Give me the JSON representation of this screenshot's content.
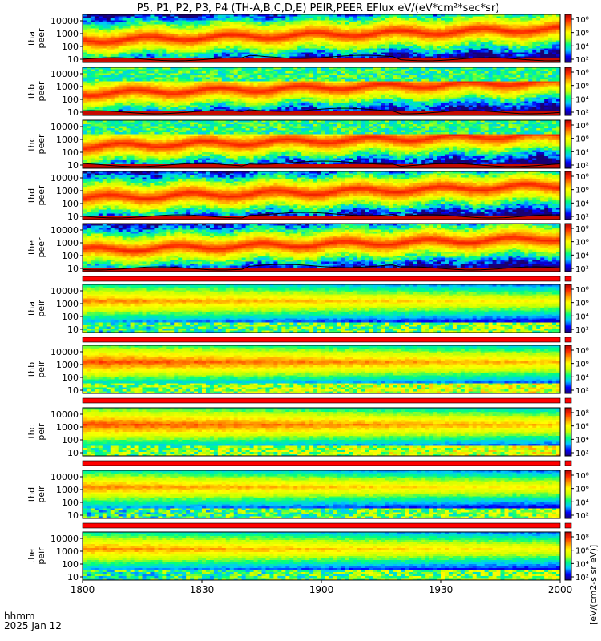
{
  "title": "P5, P1, P2, P3, P4 (TH-A,B,C,D,E) PEIR,PEER EFlux eV/(eV*cm²*sec*sr)",
  "footer": {
    "line1": "hhmm",
    "line2": "2025 Jan 12"
  },
  "colorbar_label": "[eV/(cm2-s sr eV)]",
  "chart_data": {
    "type": "heatmap",
    "x": {
      "ticks": [
        "1800",
        "1830",
        "1900",
        "1930",
        "2000"
      ],
      "range": [
        "18:00",
        "20:00"
      ]
    },
    "y_scale": "log",
    "y_ticks": [
      "10000",
      "1000",
      "100",
      "10"
    ],
    "colorbar_ticks": [
      "10⁸",
      "10⁶",
      "10⁴",
      "10²"
    ],
    "colormap": [
      "#1a0070",
      "#0000ff",
      "#00c8ff",
      "#00ff80",
      "#c8ff00",
      "#ffff00",
      "#ff9900",
      "#ff2a00",
      "#b40000"
    ],
    "panels": [
      {
        "probe": "tha",
        "type": "peer",
        "ylabel": "tha\npeer"
      },
      {
        "probe": "thb",
        "type": "peer",
        "ylabel": "thb\npeer"
      },
      {
        "probe": "thc",
        "type": "peer",
        "ylabel": "thc\npeer"
      },
      {
        "probe": "thd",
        "type": "peer",
        "ylabel": "thd\npeer"
      },
      {
        "probe": "the",
        "type": "peer",
        "ylabel": "the\npeer"
      },
      {
        "probe": "tha",
        "type": "peir",
        "ylabel": "tha\npeir"
      },
      {
        "probe": "thb",
        "type": "peir",
        "ylabel": "thb\npeir"
      },
      {
        "probe": "thc",
        "type": "peir",
        "ylabel": "thc\npeir"
      },
      {
        "probe": "thd",
        "type": "peir",
        "ylabel": "thd\npeir"
      },
      {
        "probe": "the",
        "type": "peir",
        "ylabel": "the\npeir"
      }
    ]
  }
}
